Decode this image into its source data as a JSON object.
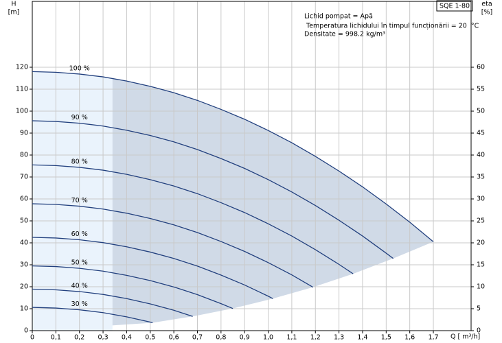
{
  "chart_data": {
    "type": "line",
    "y_label": "H",
    "y_unit": "[m]",
    "y2_label": "eta",
    "y2_unit": "[%]",
    "x_label": "Q [ m³/h]",
    "model": "SQE 1-80",
    "info": [
      "Lichid pompat = Apă",
      " Temperatura lichidului în timpul funcționării = 20  °C",
      "Densitate = 998.2  kg/m³"
    ],
    "xlim": [
      0,
      1.86
    ],
    "ylim": [
      0,
      150
    ],
    "y2lim": [
      0,
      75
    ],
    "xticks": [
      0,
      {
        "value": 0.1,
        "label": "0,1"
      },
      {
        "value": 0.2,
        "label": "0,2"
      },
      {
        "value": 0.3,
        "label": "0,3"
      },
      {
        "value": 0.4,
        "label": "0,4"
      },
      {
        "value": 0.5,
        "label": "0,5"
      },
      {
        "value": 0.6,
        "label": "0,6"
      },
      {
        "value": 0.7,
        "label": "0,7"
      },
      {
        "value": 0.8,
        "label": "0,8"
      },
      {
        "value": 0.9,
        "label": "0,9"
      },
      {
        "value": 1.0,
        "label": "1,0"
      },
      {
        "value": 1.1,
        "label": "1,1"
      },
      {
        "value": 1.2,
        "label": "1,2"
      },
      {
        "value": 1.3,
        "label": "1,3"
      },
      {
        "value": 1.4,
        "label": "1,4"
      },
      {
        "value": 1.5,
        "label": "1,5"
      },
      {
        "value": 1.6,
        "label": "1,6"
      },
      {
        "value": 1.7,
        "label": "1,7"
      }
    ],
    "yticks": [
      0,
      10,
      20,
      30,
      40,
      50,
      60,
      70,
      80,
      90,
      100,
      110,
      120
    ],
    "y2ticks": [
      0,
      5,
      10,
      15,
      20,
      25,
      30,
      35,
      40,
      45,
      50,
      55,
      60
    ],
    "grid": true,
    "min_q": 0.34,
    "series": [
      {
        "name": "100 %",
        "color": "#22407e",
        "x": [
          0,
          0.1,
          0.2,
          0.3,
          0.4,
          0.5,
          0.6,
          0.7,
          0.8,
          0.9,
          1.0,
          1.1,
          1.2,
          1.3,
          1.4,
          1.5,
          1.6,
          1.7
        ],
        "values": [
          118,
          117.7,
          116.9,
          115.6,
          113.7,
          111.3,
          108.4,
          104.9,
          100.8,
          96.3,
          91.2,
          85.6,
          79.4,
          72.7,
          65.5,
          57.7,
          49.4,
          40.5
        ]
      },
      {
        "name": "90 %",
        "color": "#22407e",
        "x": [
          0,
          0.1,
          0.2,
          0.3,
          0.4,
          0.5,
          0.6,
          0.7,
          0.8,
          0.9,
          1.0,
          1.1,
          1.2,
          1.3,
          1.4,
          1.5,
          1.53
        ],
        "values": [
          95.6,
          95.3,
          94.5,
          93.2,
          91.3,
          88.9,
          86.0,
          82.5,
          78.4,
          73.9,
          68.8,
          63.2,
          57.0,
          50.3,
          43.1,
          35.3,
          32.9
        ]
      },
      {
        "name": "80 %",
        "color": "#22407e",
        "x": [
          0,
          0.1,
          0.2,
          0.3,
          0.4,
          0.5,
          0.6,
          0.7,
          0.8,
          0.9,
          1.0,
          1.1,
          1.2,
          1.3,
          1.36
        ],
        "values": [
          75.5,
          75.2,
          74.4,
          73.1,
          71.2,
          68.8,
          65.9,
          62.4,
          58.3,
          53.8,
          48.7,
          43.1,
          36.9,
          30.2,
          25.9
        ]
      },
      {
        "name": "70 %",
        "color": "#22407e",
        "x": [
          0,
          0.1,
          0.2,
          0.3,
          0.4,
          0.5,
          0.6,
          0.7,
          0.8,
          0.9,
          1.0,
          1.1,
          1.19
        ],
        "values": [
          57.8,
          57.5,
          56.7,
          55.4,
          53.5,
          51.1,
          48.2,
          44.7,
          40.6,
          36.1,
          31.0,
          25.4,
          19.8
        ]
      },
      {
        "name": "60 %",
        "color": "#22407e",
        "x": [
          0,
          0.1,
          0.2,
          0.3,
          0.4,
          0.5,
          0.6,
          0.7,
          0.8,
          0.9,
          1.0,
          1.02
        ],
        "values": [
          42.5,
          42.2,
          41.4,
          40.1,
          38.2,
          35.8,
          32.9,
          29.4,
          25.3,
          20.8,
          15.7,
          14.6
        ]
      },
      {
        "name": "50 %",
        "color": "#22407e",
        "x": [
          0,
          0.1,
          0.2,
          0.3,
          0.4,
          0.5,
          0.6,
          0.7,
          0.8,
          0.85
        ],
        "values": [
          29.5,
          29.2,
          28.4,
          27.1,
          25.2,
          22.8,
          19.9,
          16.4,
          12.3,
          10.1
        ]
      },
      {
        "name": "40 %",
        "color": "#22407e",
        "x": [
          0,
          0.1,
          0.2,
          0.3,
          0.4,
          0.5,
          0.6,
          0.68
        ],
        "values": [
          18.9,
          18.6,
          17.8,
          16.5,
          14.6,
          12.2,
          9.3,
          6.5
        ]
      },
      {
        "name": "30 %",
        "color": "#22407e",
        "x": [
          0,
          0.1,
          0.2,
          0.3,
          0.4,
          0.5,
          0.51
        ],
        "values": [
          10.6,
          10.3,
          9.5,
          8.2,
          6.3,
          3.9,
          3.6
        ]
      }
    ]
  }
}
